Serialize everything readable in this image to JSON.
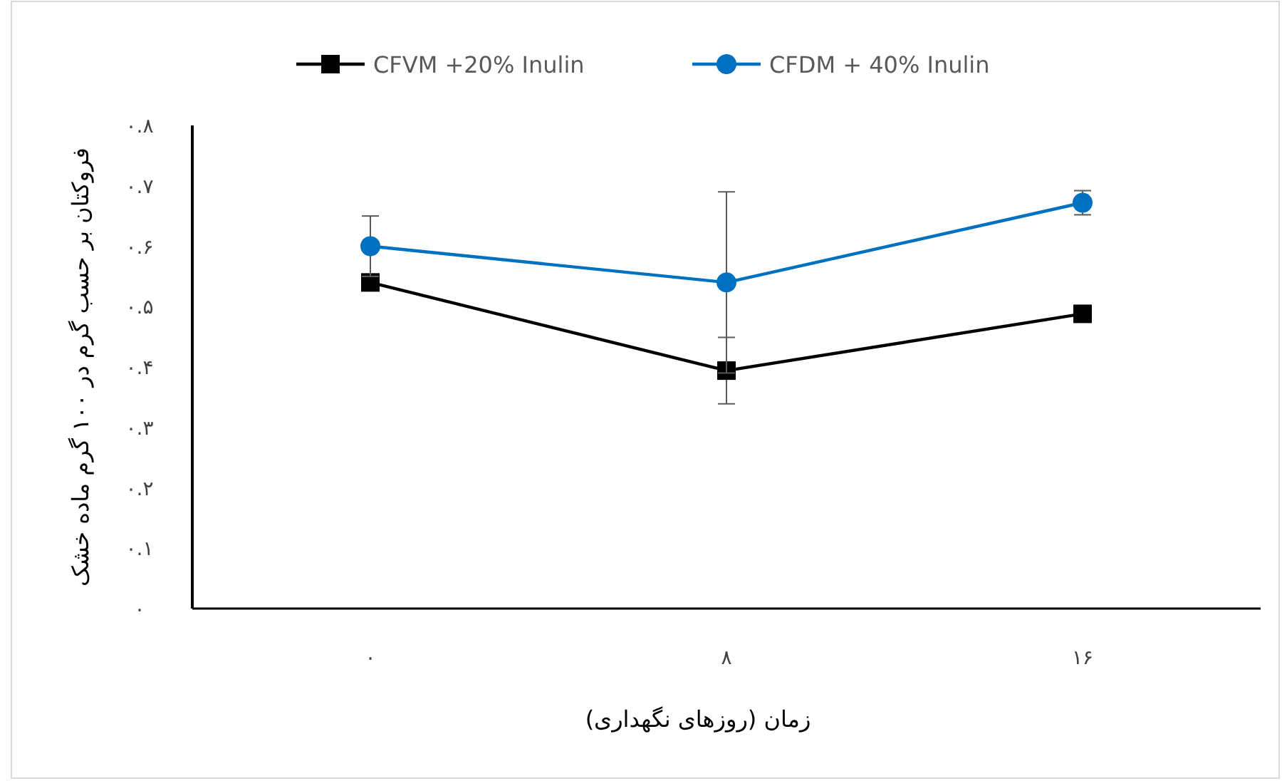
{
  "chart_data": {
    "type": "line",
    "xlabel": "زمان (روزهای نگهداری)",
    "ylabel": "فروکتان بر حسب گرم در ۱۰۰ گرم ماده خشک",
    "categories": [
      "۰",
      "۸",
      "۱۶"
    ],
    "series": [
      {
        "name": "CFVM +20% Inulin",
        "color": "#000000",
        "marker": "square",
        "values": [
          0.54,
          0.394,
          0.488
        ],
        "errors": [
          null,
          0.055,
          null
        ]
      },
      {
        "name": "CFDM + 40% Inulin",
        "color": "#0070c0",
        "marker": "circle",
        "values": [
          0.6,
          0.54,
          0.672
        ],
        "errors": [
          0.05,
          0.15,
          0.02
        ]
      }
    ],
    "ylim": [
      0,
      0.8
    ],
    "yticks": [
      {
        "value": 0,
        "label": "۰"
      },
      {
        "value": 0.1,
        "label": "۰.۱"
      },
      {
        "value": 0.2,
        "label": "۰.۲"
      },
      {
        "value": 0.3,
        "label": "۰.۳"
      },
      {
        "value": 0.4,
        "label": "۰.۴"
      },
      {
        "value": 0.5,
        "label": "۰.۵"
      },
      {
        "value": 0.6,
        "label": "۰.۶"
      },
      {
        "value": 0.7,
        "label": "۰.۷"
      },
      {
        "value": 0.8,
        "label": "۰.۸"
      }
    ],
    "grid": false,
    "legend": "top",
    "line_style": "solid"
  }
}
